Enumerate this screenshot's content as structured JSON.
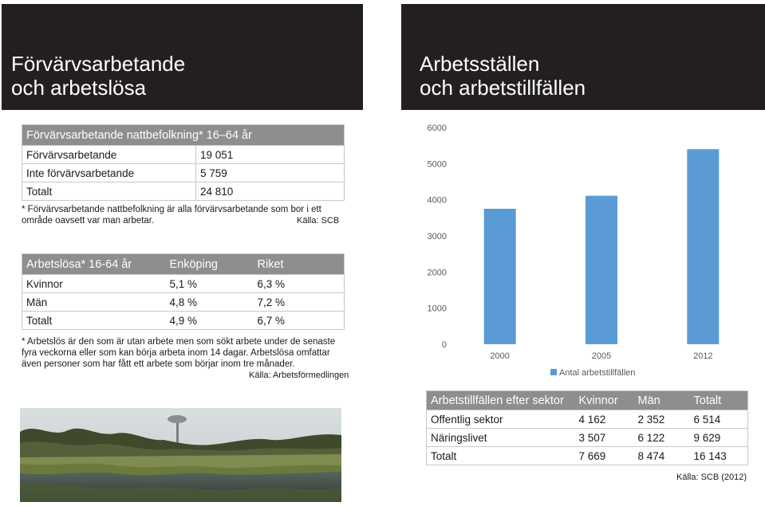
{
  "left_header": {
    "title": "Förvärvsarbetande\noch arbetslösa"
  },
  "right_header": {
    "title": "Arbetsställen\noch arbetstillfällen"
  },
  "employment_table": {
    "header": "Förvärvsarbetande nattbefolkning* 16–64 år",
    "rows": [
      {
        "label": "Förvärvsarbetande",
        "value": "19 051"
      },
      {
        "label": "Inte förvärvsarbetande",
        "value": "5 759"
      },
      {
        "label": "Totalt",
        "value": "24 810"
      }
    ],
    "footnote": "* Förvärvsarbetande nattbefolkning är alla förvärvsarbetande som bor i ett område oavsett var man arbetar.",
    "source": "Källa: SCB"
  },
  "unemployment_table": {
    "headers": [
      "Arbetslösa* 16-64 år",
      "Enköping",
      "Riket"
    ],
    "rows": [
      [
        "Kvinnor",
        "5,1 %",
        "6,3 %"
      ],
      [
        "Män",
        "4,8 %",
        "7,2 %"
      ],
      [
        "Totalt",
        "4,9 %",
        "6,7 %"
      ]
    ],
    "footnote": "* Arbetslös är den som är utan arbete men som sökt arbete under de senaste fyra veckorna eller som kan börja arbeta inom 14 dagar. Arbetslösa omfattar även personer som har fått ett arbete som börjar inom tre månader.",
    "source": "Källa: Arbetsförmedlingen"
  },
  "chart_data": {
    "type": "bar",
    "categories": [
      "2000",
      "2005",
      "2012"
    ],
    "series": [
      {
        "name": "Antal arbetstillfällen",
        "values": [
          3750,
          4110,
          5400
        ],
        "color": "#5b9bd5"
      }
    ],
    "y_ticks": [
      "0",
      "1000",
      "2000",
      "3000",
      "4000",
      "5000",
      "6000"
    ],
    "ylim": [
      0,
      6000
    ],
    "legend_position": "bottom",
    "grid": false
  },
  "sector_table": {
    "headers": [
      "Arbetstillfällen efter sektor",
      "Kvinnor",
      "Män",
      "Totalt"
    ],
    "rows": [
      [
        "Offentlig sektor",
        "4 162",
        "2 352",
        "6 514"
      ],
      [
        "Näringslivet",
        "3 507",
        "6 122",
        "9 629"
      ],
      [
        "Totalt",
        "7 669",
        "8 474",
        "16 143"
      ]
    ],
    "source": "Källa: SCB (2012)"
  },
  "colors": {
    "header_bg": "#231f20",
    "table_header_bg": "#8e8d8f",
    "bar": "#5b9bd5"
  }
}
